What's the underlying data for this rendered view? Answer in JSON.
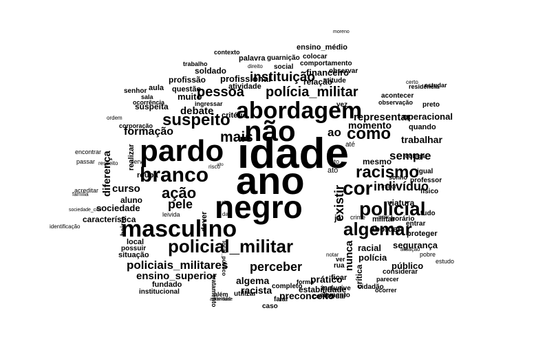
{
  "words": [
    "idade",
    "ano",
    "não",
    "negro",
    "abordagem",
    "pardo",
    "masculino",
    "policial_militar",
    "policial",
    "algemar",
    "branco",
    "racismo",
    "cor",
    "suspeito",
    "como",
    "pessoa",
    "polícia_militar",
    "instituição",
    "ação",
    "pele",
    "indivíduo",
    "mais",
    "sempre",
    "racista",
    "existir",
    "perceber",
    "policiais_militares",
    "ensino_superior",
    "formação",
    "curso",
    "debate",
    "momento",
    "preconceito",
    "algema",
    "prático",
    "estabilidade",
    "racial",
    "público",
    "segurança",
    "polícia",
    "nunca",
    "crítica",
    "diferença",
    "sociedade",
    "aluno",
    "característica",
    "representar",
    "financeiro",
    "operacional",
    "trabalhar",
    "quando",
    "critério",
    "relação",
    "atividade",
    "profissional",
    "muito",
    "ingressar",
    "suspeita",
    "profissão",
    "questão",
    "soldado",
    "aula",
    "mesmo",
    "viatura",
    "militar",
    "abordar",
    "horário",
    "tudo",
    "proteger",
    "entrar",
    "cidadão",
    "considerar",
    "ficar",
    "concordar",
    "completo",
    "social",
    "comportamento",
    "colocar",
    "palavra",
    "guarnição",
    "ensino_médio",
    "atitude",
    "observar",
    "local",
    "situação",
    "fundado",
    "institucional",
    "possuir",
    "leivida",
    "dever",
    "realizar",
    "bairro",
    "roupa",
    "servir",
    "passar",
    "encontrar",
    "acreditar",
    "sociedade_civil",
    "vez",
    "ao",
    "até",
    "ato",
    "já",
    "crime",
    "usar",
    "preto",
    "acontecer",
    "observação",
    "estudar",
    "senhor",
    "sala",
    "ocorrência",
    "corporação",
    "ordem",
    "moreno",
    "contexto",
    "trabalho",
    "fato",
    "direito",
    "certo",
    "igual",
    "colega",
    "físico",
    "professor",
    "sonho",
    "maior",
    "risco",
    "tratamento",
    "alemão",
    "além",
    "utilizar",
    "falar",
    "caso",
    "inclusive",
    "elemento",
    "ocorrer",
    "forma",
    "parecer",
    "pobre",
    "estudo",
    "residência",
    "respeito",
    "família",
    "identificação",
    "rua",
    "ver",
    "notar",
    "sim",
    "dar",
    "alto",
    "local_público",
    "atuação",
    "autoridade"
  ]
}
